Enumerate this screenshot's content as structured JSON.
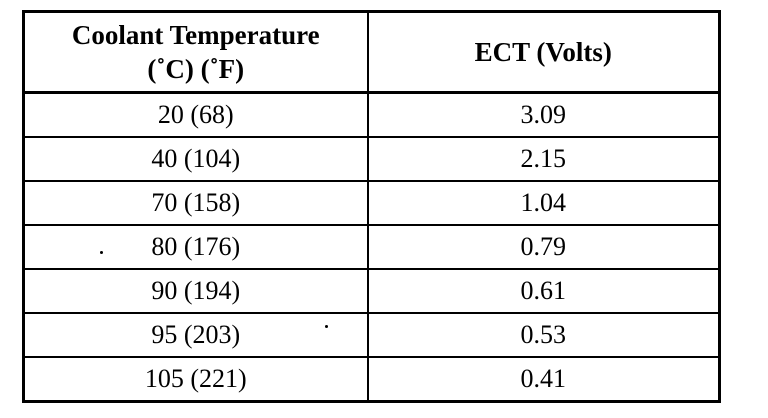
{
  "table": {
    "headers": {
      "temp_line1": "Coolant Temperature",
      "temp_line2": "(˚C) (˚F)",
      "ect": "ECT (Volts)"
    },
    "rows": [
      {
        "temp": "20 (68)",
        "volts": "3.09"
      },
      {
        "temp": "40 (104)",
        "volts": "2.15"
      },
      {
        "temp": "70 (158)",
        "volts": "1.04"
      },
      {
        "temp": "80 (176)",
        "volts": "0.79"
      },
      {
        "temp": "90 (194)",
        "volts": "0.61"
      },
      {
        "temp": "95 (203)",
        "volts": "0.53"
      },
      {
        "temp": "105 (221)",
        "volts": "0.41"
      }
    ]
  }
}
